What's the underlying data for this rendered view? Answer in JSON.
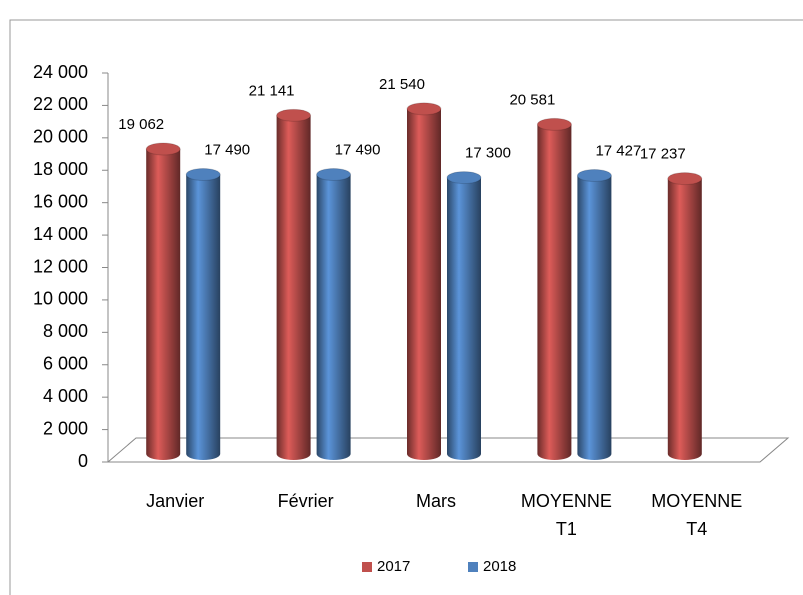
{
  "chart_data": {
    "type": "bar",
    "categories": [
      "Janvier",
      "Février",
      "Mars",
      "MOYENNE T1",
      "MOYENNE T4"
    ],
    "series": [
      {
        "name": "2017",
        "color": "#c0504d",
        "values": [
          19062,
          21141,
          21540,
          20581,
          17237
        ],
        "value_labels": [
          "19 062",
          "21 141",
          "21 540",
          "20 581",
          "17 237"
        ]
      },
      {
        "name": "2018",
        "color": "#4f81bd",
        "values": [
          17490,
          17490,
          17300,
          17427,
          null
        ],
        "value_labels": [
          "17 490",
          "17 490",
          "17 300",
          "17 427",
          null
        ]
      }
    ],
    "ylim": [
      0,
      24000
    ],
    "yticks": [
      0,
      {
        "value": 2000,
        "label": "2 000"
      },
      {
        "value": 4000,
        "label": "4 000"
      },
      {
        "value": 6000,
        "label": "6 000"
      },
      {
        "value": 8000,
        "label": "8 000"
      },
      {
        "value": 10000,
        "label": "10 000"
      },
      {
        "value": 12000,
        "label": "12 000"
      },
      {
        "value": 14000,
        "label": "14 000"
      },
      {
        "value": 16000,
        "label": "16 000"
      },
      {
        "value": 18000,
        "label": "18 000"
      },
      {
        "value": 20000,
        "label": "20 000"
      },
      {
        "value": 22000,
        "label": "22 000"
      },
      {
        "value": 24000,
        "label": "24 000"
      }
    ],
    "grid": false,
    "legend": "bottom"
  }
}
